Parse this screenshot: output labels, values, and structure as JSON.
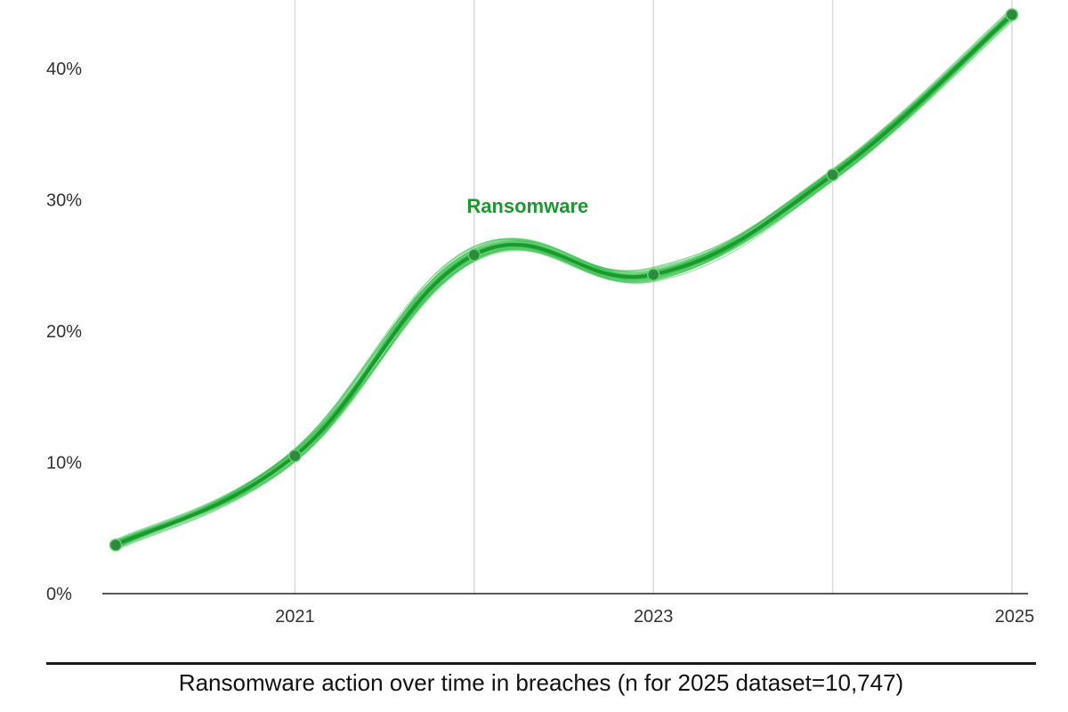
{
  "chart_data": {
    "type": "line",
    "x": [
      2020,
      2021,
      2022,
      2023,
      2024,
      2025
    ],
    "series": [
      {
        "name": "Ransomware",
        "values": [
          3.7,
          10.5,
          25.8,
          24.3,
          31.9,
          44.1
        ]
      }
    ],
    "label_x": 2022,
    "label_y": 29.5,
    "title": "",
    "xlabel": "",
    "ylabel": "",
    "xlim": [
      2020,
      2025
    ],
    "ylim": [
      0,
      45
    ],
    "yticks": [
      0,
      10,
      20,
      30,
      40
    ],
    "ytick_labels": [
      "0%",
      "10%",
      "20%",
      "30%",
      "40%"
    ],
    "xticks": [
      2021,
      2023,
      2025
    ],
    "xtick_labels": [
      "2021",
      "2023",
      "2025"
    ],
    "vertical_gridlines": [
      2021,
      2022,
      2023,
      2024,
      2025
    ],
    "grid": "vertical",
    "caption": "Ransomware action over time in breaches (n for 2025 dataset=10,747)",
    "colors": {
      "line": "#1a9a2e",
      "band": "#35c04a",
      "marker": "#2e8b3e",
      "grid": "#d9d9d9",
      "axis": "#222222"
    }
  }
}
